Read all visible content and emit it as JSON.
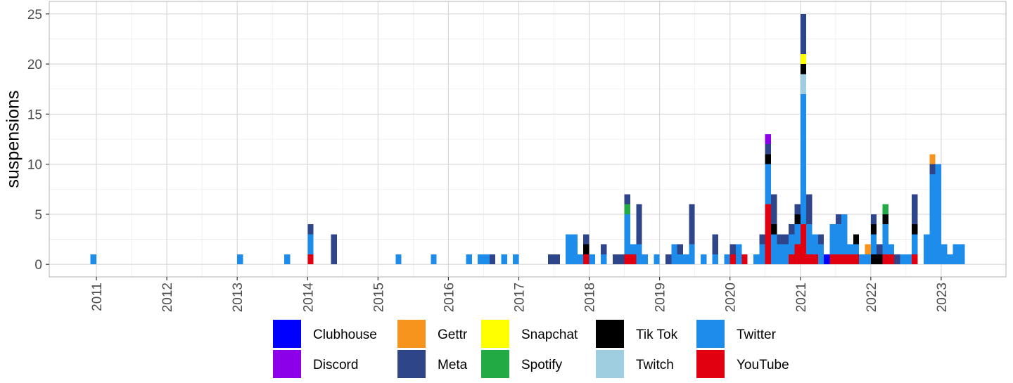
{
  "chart_data": {
    "type": "bar",
    "stacked": true,
    "title": "",
    "xlabel": "",
    "ylabel": "suspensions",
    "ylim": [
      -1.25,
      26.25
    ],
    "xlim": [
      2010.33,
      2023.92
    ],
    "y_ticks": [
      0,
      5,
      10,
      15,
      20,
      25
    ],
    "x_ticks": [
      "2011",
      "2012",
      "2013",
      "2014",
      "2015",
      "2016",
      "2017",
      "2018",
      "2019",
      "2020",
      "2021",
      "2022",
      "2023"
    ],
    "bin_width_months": 1,
    "grid": true,
    "legend_position": "bottom",
    "series": [
      {
        "name": "Clubhouse",
        "color": "#0000FF"
      },
      {
        "name": "Discord",
        "color": "#8B00E8"
      },
      {
        "name": "Gettr",
        "color": "#F7941D"
      },
      {
        "name": "Meta",
        "color": "#2F4589"
      },
      {
        "name": "Snapchat",
        "color": "#FFFF00"
      },
      {
        "name": "Spotify",
        "color": "#22AA44"
      },
      {
        "name": "Tik Tok",
        "color": "#000000"
      },
      {
        "name": "Twitch",
        "color": "#9FCEE0"
      },
      {
        "name": "Twitter",
        "color": "#1E8CEB"
      },
      {
        "name": "YouTube",
        "color": "#E0000F"
      }
    ],
    "bars": [
      {
        "date": "2010-12",
        "stack": [
          [
            "Twitter",
            1
          ]
        ]
      },
      {
        "date": "2013-01",
        "stack": [
          [
            "Twitter",
            1
          ]
        ]
      },
      {
        "date": "2013-09",
        "stack": [
          [
            "Twitter",
            1
          ]
        ]
      },
      {
        "date": "2014-01",
        "stack": [
          [
            "YouTube",
            1
          ],
          [
            "Twitter",
            2
          ],
          [
            "Meta",
            1
          ]
        ]
      },
      {
        "date": "2014-05",
        "stack": [
          [
            "Meta",
            3
          ]
        ]
      },
      {
        "date": "2015-04",
        "stack": [
          [
            "Twitter",
            1
          ]
        ]
      },
      {
        "date": "2015-10",
        "stack": [
          [
            "Twitter",
            1
          ]
        ]
      },
      {
        "date": "2016-04",
        "stack": [
          [
            "Twitter",
            1
          ]
        ]
      },
      {
        "date": "2016-06",
        "stack": [
          [
            "Twitter",
            1
          ]
        ]
      },
      {
        "date": "2016-07",
        "stack": [
          [
            "Twitter",
            1
          ]
        ]
      },
      {
        "date": "2016-08",
        "stack": [
          [
            "Meta",
            1
          ]
        ]
      },
      {
        "date": "2016-10",
        "stack": [
          [
            "Twitter",
            1
          ]
        ]
      },
      {
        "date": "2016-12",
        "stack": [
          [
            "Twitter",
            1
          ]
        ]
      },
      {
        "date": "2017-06",
        "stack": [
          [
            "Meta",
            1
          ]
        ]
      },
      {
        "date": "2017-07",
        "stack": [
          [
            "Meta",
            1
          ]
        ]
      },
      {
        "date": "2017-09",
        "stack": [
          [
            "Twitter",
            3
          ]
        ]
      },
      {
        "date": "2017-10",
        "stack": [
          [
            "Twitter",
            3
          ]
        ]
      },
      {
        "date": "2017-11",
        "stack": [
          [
            "Twitter",
            1
          ]
        ]
      },
      {
        "date": "2017-12",
        "stack": [
          [
            "YouTube",
            1
          ],
          [
            "Tik Tok",
            1
          ],
          [
            "Meta",
            1
          ]
        ]
      },
      {
        "date": "2018-01",
        "stack": [
          [
            "Twitter",
            1
          ]
        ]
      },
      {
        "date": "2018-03",
        "stack": [
          [
            "Twitter",
            1
          ],
          [
            "Meta",
            1
          ]
        ]
      },
      {
        "date": "2018-05",
        "stack": [
          [
            "Meta",
            1
          ]
        ]
      },
      {
        "date": "2018-06",
        "stack": [
          [
            "Meta",
            1
          ]
        ]
      },
      {
        "date": "2018-07",
        "stack": [
          [
            "YouTube",
            1
          ],
          [
            "Twitter",
            4
          ],
          [
            "Spotify",
            1
          ],
          [
            "Meta",
            1
          ]
        ]
      },
      {
        "date": "2018-08",
        "stack": [
          [
            "YouTube",
            1
          ],
          [
            "Twitter",
            1
          ]
        ]
      },
      {
        "date": "2018-09",
        "stack": [
          [
            "Twitter",
            2
          ],
          [
            "Meta",
            4
          ]
        ]
      },
      {
        "date": "2018-10",
        "stack": [
          [
            "Twitter",
            1
          ]
        ]
      },
      {
        "date": "2018-12",
        "stack": [
          [
            "Twitter",
            1
          ]
        ]
      },
      {
        "date": "2019-02",
        "stack": [
          [
            "Meta",
            1
          ]
        ]
      },
      {
        "date": "2019-03",
        "stack": [
          [
            "Twitter",
            2
          ]
        ]
      },
      {
        "date": "2019-04",
        "stack": [
          [
            "Twitter",
            1
          ],
          [
            "Meta",
            1
          ]
        ]
      },
      {
        "date": "2019-05",
        "stack": [
          [
            "Twitter",
            1
          ]
        ]
      },
      {
        "date": "2019-06",
        "stack": [
          [
            "Twitter",
            2
          ],
          [
            "Meta",
            4
          ]
        ]
      },
      {
        "date": "2019-08",
        "stack": [
          [
            "Twitter",
            1
          ]
        ]
      },
      {
        "date": "2019-10",
        "stack": [
          [
            "Twitter",
            1
          ],
          [
            "Meta",
            2
          ]
        ]
      },
      {
        "date": "2019-12",
        "stack": [
          [
            "Twitter",
            1
          ]
        ]
      },
      {
        "date": "2020-01",
        "stack": [
          [
            "YouTube",
            1
          ],
          [
            "Meta",
            1
          ]
        ]
      },
      {
        "date": "2020-02",
        "stack": [
          [
            "Twitter",
            2
          ]
        ]
      },
      {
        "date": "2020-03",
        "stack": [
          [
            "YouTube",
            1
          ]
        ]
      },
      {
        "date": "2020-05",
        "stack": [
          [
            "Twitter",
            1
          ]
        ]
      },
      {
        "date": "2020-06",
        "stack": [
          [
            "Twitter",
            2
          ],
          [
            "Meta",
            1
          ]
        ]
      },
      {
        "date": "2020-07",
        "stack": [
          [
            "YouTube",
            6
          ],
          [
            "Twitter",
            4
          ],
          [
            "Tik Tok",
            1
          ],
          [
            "Meta",
            1
          ],
          [
            "Discord",
            1
          ]
        ]
      },
      {
        "date": "2020-08",
        "stack": [
          [
            "Twitter",
            3
          ],
          [
            "Tik Tok",
            1
          ],
          [
            "Meta",
            3
          ]
        ]
      },
      {
        "date": "2020-09",
        "stack": [
          [
            "Twitter",
            2
          ],
          [
            "Meta",
            1
          ]
        ]
      },
      {
        "date": "2020-10",
        "stack": [
          [
            "Twitter",
            2
          ],
          [
            "Meta",
            1
          ]
        ]
      },
      {
        "date": "2020-11",
        "stack": [
          [
            "YouTube",
            1
          ],
          [
            "Twitter",
            2
          ],
          [
            "Meta",
            1
          ]
        ]
      },
      {
        "date": "2020-12",
        "stack": [
          [
            "YouTube",
            2
          ],
          [
            "Twitter",
            2
          ],
          [
            "Tik Tok",
            1
          ],
          [
            "Meta",
            1
          ]
        ]
      },
      {
        "date": "2021-01",
        "stack": [
          [
            "YouTube",
            4
          ],
          [
            "Twitter",
            13
          ],
          [
            "Twitch",
            2
          ],
          [
            "Tik Tok",
            1
          ],
          [
            "Snapchat",
            1
          ],
          [
            "Meta",
            4
          ]
        ]
      },
      {
        "date": "2021-02",
        "stack": [
          [
            "YouTube",
            1
          ],
          [
            "Twitter",
            3
          ],
          [
            "Meta",
            3
          ]
        ]
      },
      {
        "date": "2021-03",
        "stack": [
          [
            "YouTube",
            1
          ],
          [
            "Twitter",
            2
          ]
        ]
      },
      {
        "date": "2021-04",
        "stack": [
          [
            "Twitter",
            2
          ],
          [
            "Meta",
            1
          ]
        ]
      },
      {
        "date": "2021-05",
        "stack": [
          [
            "Clubhouse",
            1
          ]
        ]
      },
      {
        "date": "2021-06",
        "stack": [
          [
            "YouTube",
            1
          ],
          [
            "Twitter",
            3
          ]
        ]
      },
      {
        "date": "2021-07",
        "stack": [
          [
            "YouTube",
            1
          ],
          [
            "Twitter",
            3
          ],
          [
            "Meta",
            1
          ]
        ]
      },
      {
        "date": "2021-08",
        "stack": [
          [
            "YouTube",
            1
          ],
          [
            "Twitter",
            4
          ]
        ]
      },
      {
        "date": "2021-09",
        "stack": [
          [
            "YouTube",
            1
          ],
          [
            "Twitter",
            1
          ]
        ]
      },
      {
        "date": "2021-10",
        "stack": [
          [
            "YouTube",
            1
          ],
          [
            "Twitter",
            1
          ],
          [
            "Tik Tok",
            1
          ]
        ]
      },
      {
        "date": "2021-11",
        "stack": [
          [
            "Twitter",
            1
          ]
        ]
      },
      {
        "date": "2021-12",
        "stack": [
          [
            "Twitter",
            1
          ],
          [
            "Gettr",
            1
          ]
        ]
      },
      {
        "date": "2022-01",
        "stack": [
          [
            "Tik Tok",
            1
          ],
          [
            "Twitter",
            2
          ],
          [
            "Tik Tok",
            1
          ],
          [
            "Meta",
            1
          ]
        ]
      },
      {
        "date": "2022-02",
        "stack": [
          [
            "Tik Tok",
            1
          ],
          [
            "Meta",
            1
          ]
        ]
      },
      {
        "date": "2022-03",
        "stack": [
          [
            "YouTube",
            1
          ],
          [
            "Twitter",
            3
          ],
          [
            "Tik Tok",
            1
          ],
          [
            "Spotify",
            1
          ]
        ]
      },
      {
        "date": "2022-04",
        "stack": [
          [
            "YouTube",
            1
          ],
          [
            "Twitter",
            1
          ]
        ]
      },
      {
        "date": "2022-05",
        "stack": [
          [
            "Meta",
            1
          ]
        ]
      },
      {
        "date": "2022-06",
        "stack": [
          [
            "Twitter",
            1
          ]
        ]
      },
      {
        "date": "2022-07",
        "stack": [
          [
            "Twitter",
            1
          ]
        ]
      },
      {
        "date": "2022-08",
        "stack": [
          [
            "YouTube",
            1
          ],
          [
            "Twitter",
            2
          ],
          [
            "Tik Tok",
            1
          ],
          [
            "Meta",
            3
          ]
        ]
      },
      {
        "date": "2022-10",
        "stack": [
          [
            "Twitter",
            3
          ]
        ]
      },
      {
        "date": "2022-11",
        "stack": [
          [
            "Twitter",
            9
          ],
          [
            "Meta",
            1
          ],
          [
            "Gettr",
            1
          ]
        ]
      },
      {
        "date": "2022-12",
        "stack": [
          [
            "Twitter",
            10
          ]
        ]
      },
      {
        "date": "2023-01",
        "stack": [
          [
            "Twitter",
            2
          ]
        ]
      },
      {
        "date": "2023-02",
        "stack": [
          [
            "Twitter",
            1
          ]
        ]
      },
      {
        "date": "2023-03",
        "stack": [
          [
            "Twitter",
            2
          ]
        ]
      },
      {
        "date": "2023-04",
        "stack": [
          [
            "Twitter",
            2
          ]
        ]
      }
    ]
  }
}
